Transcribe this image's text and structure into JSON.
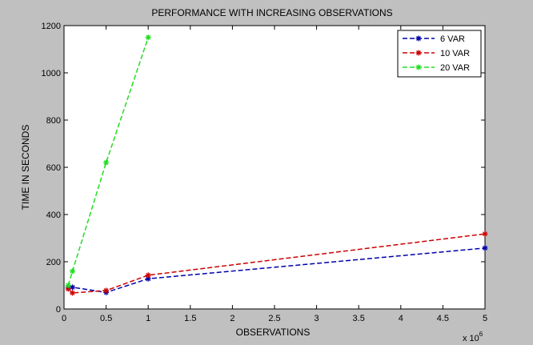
{
  "chart_data": {
    "type": "line",
    "title": "PERFORMANCE WITH INCREASING OBSERVATIONS",
    "xlabel": "OBSERVATIONS",
    "ylabel": "TIME IN SECONDS",
    "x_multiplier_label": "x 10",
    "x_multiplier_exponent": "6",
    "xlim": [
      0,
      5
    ],
    "ylim": [
      0,
      1200
    ],
    "x_ticks": [
      0,
      0.5,
      1,
      1.5,
      2,
      2.5,
      3,
      3.5,
      4,
      4.5,
      5
    ],
    "x_tick_labels": [
      "0",
      "0.5",
      "1",
      "1.5",
      "2",
      "2.5",
      "3",
      "3.5",
      "4",
      "4.5",
      "5"
    ],
    "y_ticks": [
      0,
      200,
      400,
      600,
      800,
      1000,
      1200
    ],
    "y_tick_labels": [
      "0",
      "200",
      "400",
      "600",
      "800",
      "1000",
      "1200"
    ],
    "grid": false,
    "legend_position": "top-right",
    "series": [
      {
        "name": "6 VAR",
        "color": "#0000aa",
        "x": [
          0.05,
          0.1,
          0.5,
          1,
          5
        ],
        "y": [
          92,
          92,
          70,
          128,
          258
        ]
      },
      {
        "name": "10 VAR",
        "color": "#cc0000",
        "x": [
          0.05,
          0.1,
          0.5,
          1,
          5
        ],
        "y": [
          85,
          68,
          78,
          143,
          318
        ]
      },
      {
        "name": "20 VAR",
        "color": "#22dd22",
        "x": [
          0.05,
          0.1,
          0.5,
          1
        ],
        "y": [
          100,
          160,
          620,
          1150
        ]
      }
    ]
  }
}
